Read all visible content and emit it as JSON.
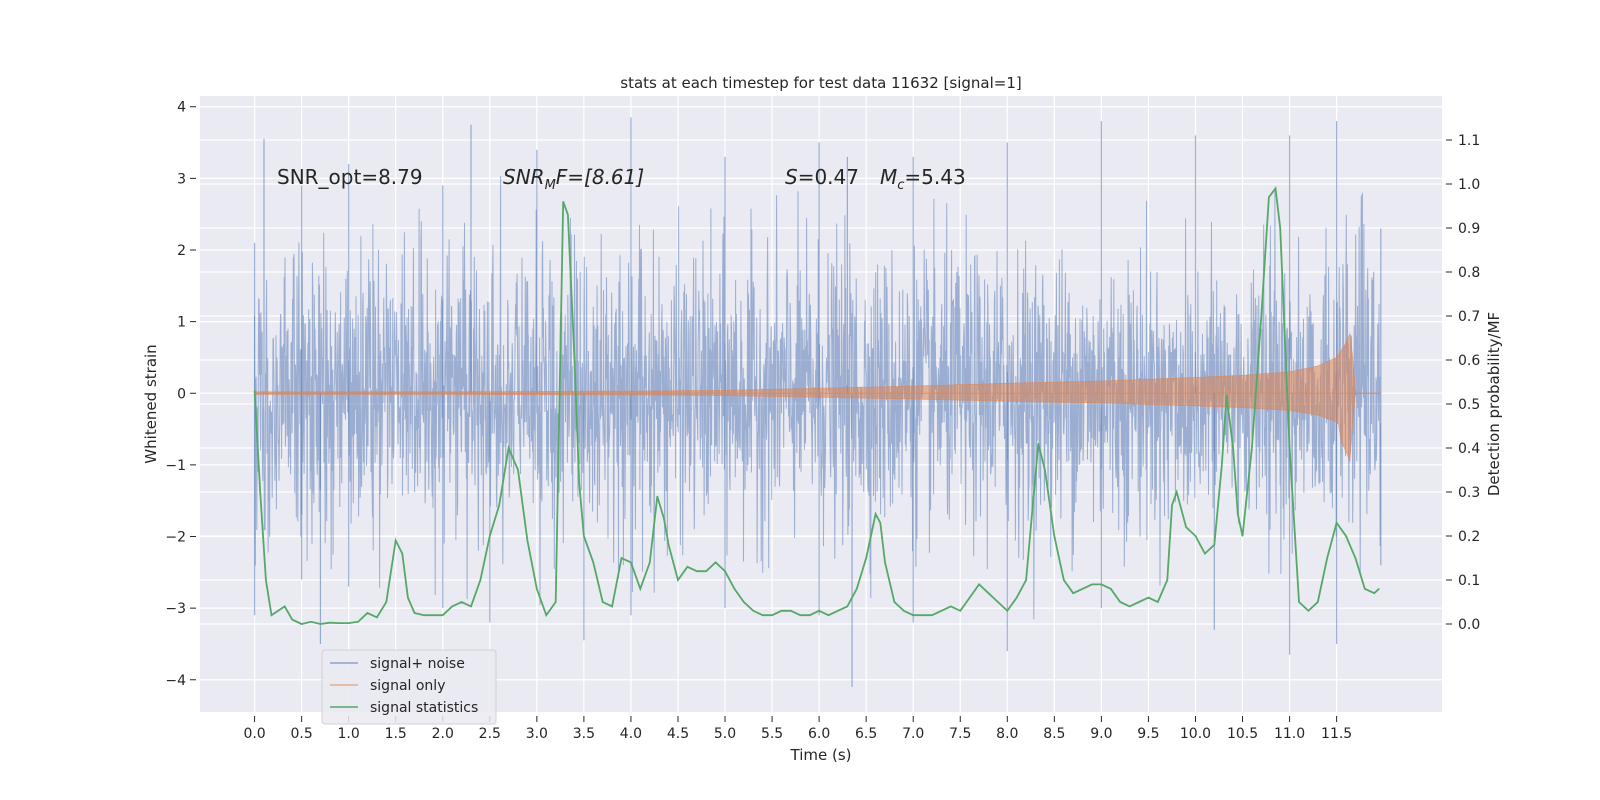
{
  "chart_data": {
    "type": "line",
    "title": "stats at each timestep for test data 11632 [signal=1]",
    "xlabel": "Time (s)",
    "ylabel_left": "Whitened strain",
    "ylabel_right": "Detection probability/MF",
    "xlim": [
      -0.58,
      12.62
    ],
    "ylim_left": [
      -4.45,
      4.15
    ],
    "ylim_right": [
      -0.2,
      1.2
    ],
    "grid": true,
    "legend_position": "lower-left",
    "x_ticks": [
      0.0,
      0.5,
      1.0,
      1.5,
      2.0,
      2.5,
      3.0,
      3.5,
      4.0,
      4.5,
      5.0,
      5.5,
      6.0,
      6.5,
      7.0,
      7.5,
      8.0,
      8.5,
      9.0,
      9.5,
      10.0,
      10.5,
      11.0,
      11.5
    ],
    "x_tick_labels": [
      "0.0",
      "0.5",
      "1.0",
      "1.5",
      "2.0",
      "2.5",
      "3.0",
      "3.5",
      "4.0",
      "4.5",
      "5.0",
      "5.5",
      "6.0",
      "6.5",
      "7.0",
      "7.5",
      "8.0",
      "8.5",
      "9.0",
      "9.5",
      "10.0",
      "10.5",
      "11.0",
      "11.5"
    ],
    "y_left_ticks": [
      -4,
      -3,
      -2,
      -1,
      0,
      1,
      2,
      3,
      4
    ],
    "y_left_tick_labels": [
      "−4",
      "−3",
      "−2",
      "−1",
      "0",
      "1",
      "2",
      "3",
      "4"
    ],
    "y_right_ticks": [
      0.0,
      0.1,
      0.2,
      0.3,
      0.4,
      0.5,
      0.6,
      0.7,
      0.8,
      0.9,
      1.0,
      1.1
    ],
    "y_right_tick_labels": [
      "0.0",
      "0.1",
      "0.2",
      "0.3",
      "0.4",
      "0.5",
      "0.6",
      "0.7",
      "0.8",
      "0.9",
      "1.0",
      "1.1"
    ],
    "annotations": {
      "snr_opt": "SNR_opt=8.79",
      "snr_mf": "SNR",
      "snr_mf_sub": "M",
      "snr_mf_rest": "F=[8.61]",
      "s_label": "S",
      "s_value": "=0.47",
      "mc_label": "M",
      "mc_sub": "c",
      "mc_value": "=5.43"
    },
    "series": [
      {
        "name": "signal+ noise",
        "axis": "left",
        "color": "#4c72b0",
        "style": "dense noise trace, roughly normal, values mostly within ±2.5 with spikes near ±3.8",
        "x_range": [
          0.0,
          11.97
        ],
        "envelope_upper": [
          [
            0.0,
            2.1
          ],
          [
            0.1,
            3.55
          ],
          [
            0.5,
            2.9
          ],
          [
            1.0,
            3.2
          ],
          [
            2.0,
            2.9
          ],
          [
            2.3,
            3.75
          ],
          [
            3.0,
            3.4
          ],
          [
            4.0,
            3.85
          ],
          [
            5.0,
            3.3
          ],
          [
            6.0,
            3.5
          ],
          [
            6.3,
            3.3
          ],
          [
            7.0,
            3.3
          ],
          [
            8.0,
            3.5
          ],
          [
            9.0,
            3.8
          ],
          [
            10.0,
            3.6
          ],
          [
            11.0,
            3.6
          ],
          [
            11.5,
            3.8
          ],
          [
            11.97,
            2.3
          ]
        ],
        "envelope_lower": [
          [
            0.0,
            -3.1
          ],
          [
            0.5,
            -2.6
          ],
          [
            0.7,
            -3.5
          ],
          [
            1.0,
            -2.7
          ],
          [
            2.0,
            -3.0
          ],
          [
            2.5,
            -3.2
          ],
          [
            3.5,
            -3.45
          ],
          [
            4.0,
            -3.1
          ],
          [
            5.0,
            -3.0
          ],
          [
            6.0,
            -3.1
          ],
          [
            6.35,
            -4.1
          ],
          [
            7.0,
            -3.2
          ],
          [
            8.0,
            -3.6
          ],
          [
            9.0,
            -3.0
          ],
          [
            10.2,
            -3.3
          ],
          [
            11.0,
            -3.65
          ],
          [
            11.5,
            -3.5
          ],
          [
            11.97,
            -2.4
          ]
        ]
      },
      {
        "name": "signal only",
        "axis": "left",
        "color": "#dd8452",
        "style": "chirp: amplitude grows with time, merger near 11.65 s",
        "envelope": [
          [
            0.0,
            0.02
          ],
          [
            2.0,
            0.02
          ],
          [
            4.0,
            0.03
          ],
          [
            5.0,
            0.04
          ],
          [
            6.0,
            0.07
          ],
          [
            7.0,
            0.1
          ],
          [
            8.0,
            0.14
          ],
          [
            9.0,
            0.17
          ],
          [
            10.0,
            0.22
          ],
          [
            10.5,
            0.25
          ],
          [
            11.0,
            0.3
          ],
          [
            11.3,
            0.38
          ],
          [
            11.5,
            0.5
          ],
          [
            11.6,
            0.7
          ],
          [
            11.65,
            0.86
          ],
          [
            11.7,
            0.0
          ],
          [
            11.97,
            0.0
          ]
        ]
      },
      {
        "name": "signal statistics",
        "axis": "right",
        "color": "#55a868",
        "x": [
          0.0,
          0.06,
          0.12,
          0.18,
          0.25,
          0.32,
          0.4,
          0.5,
          0.6,
          0.7,
          0.8,
          0.9,
          1.0,
          1.1,
          1.2,
          1.3,
          1.4,
          1.5,
          1.57,
          1.63,
          1.7,
          1.8,
          1.9,
          2.0,
          2.1,
          2.2,
          2.3,
          2.4,
          2.5,
          2.6,
          2.7,
          2.8,
          2.9,
          3.0,
          3.1,
          3.2,
          3.28,
          3.33,
          3.4,
          3.45,
          3.5,
          3.6,
          3.7,
          3.8,
          3.9,
          4.0,
          4.1,
          4.2,
          4.28,
          4.35,
          4.4,
          4.5,
          4.6,
          4.7,
          4.8,
          4.9,
          5.0,
          5.1,
          5.2,
          5.3,
          5.4,
          5.5,
          5.6,
          5.7,
          5.8,
          5.9,
          6.0,
          6.1,
          6.2,
          6.3,
          6.4,
          6.5,
          6.6,
          6.65,
          6.7,
          6.8,
          6.9,
          7.0,
          7.1,
          7.2,
          7.3,
          7.4,
          7.5,
          7.6,
          7.7,
          7.8,
          7.9,
          8.0,
          8.1,
          8.2,
          8.33,
          8.4,
          8.5,
          8.6,
          8.7,
          8.8,
          8.9,
          9.0,
          9.1,
          9.2,
          9.3,
          9.4,
          9.5,
          9.6,
          9.7,
          9.75,
          9.8,
          9.9,
          10.0,
          10.05,
          10.1,
          10.2,
          10.28,
          10.33,
          10.4,
          10.45,
          10.5,
          10.6,
          10.7,
          10.78,
          10.85,
          10.9,
          11.0,
          11.1,
          11.2,
          11.3,
          11.4,
          11.5,
          11.6,
          11.7,
          11.8,
          11.9,
          11.95
        ],
        "y": [
          0.53,
          0.3,
          0.1,
          0.02,
          0.03,
          0.04,
          0.01,
          0.0,
          0.005,
          0.0,
          0.003,
          0.002,
          0.002,
          0.005,
          0.025,
          0.015,
          0.05,
          0.19,
          0.16,
          0.06,
          0.025,
          0.02,
          0.02,
          0.02,
          0.04,
          0.05,
          0.04,
          0.1,
          0.2,
          0.27,
          0.4,
          0.35,
          0.19,
          0.08,
          0.02,
          0.05,
          0.96,
          0.93,
          0.6,
          0.32,
          0.2,
          0.14,
          0.05,
          0.04,
          0.15,
          0.14,
          0.08,
          0.14,
          0.29,
          0.24,
          0.18,
          0.1,
          0.13,
          0.12,
          0.12,
          0.14,
          0.12,
          0.08,
          0.05,
          0.03,
          0.02,
          0.02,
          0.03,
          0.03,
          0.02,
          0.02,
          0.03,
          0.02,
          0.03,
          0.04,
          0.08,
          0.15,
          0.25,
          0.23,
          0.14,
          0.05,
          0.03,
          0.02,
          0.02,
          0.02,
          0.03,
          0.04,
          0.03,
          0.06,
          0.09,
          0.07,
          0.05,
          0.03,
          0.06,
          0.1,
          0.41,
          0.35,
          0.2,
          0.1,
          0.07,
          0.08,
          0.09,
          0.09,
          0.08,
          0.05,
          0.04,
          0.05,
          0.06,
          0.05,
          0.1,
          0.27,
          0.3,
          0.22,
          0.2,
          0.18,
          0.16,
          0.18,
          0.36,
          0.52,
          0.4,
          0.25,
          0.2,
          0.4,
          0.7,
          0.97,
          0.99,
          0.9,
          0.4,
          0.05,
          0.03,
          0.05,
          0.15,
          0.23,
          0.2,
          0.15,
          0.08,
          0.07,
          0.08
        ]
      }
    ]
  }
}
